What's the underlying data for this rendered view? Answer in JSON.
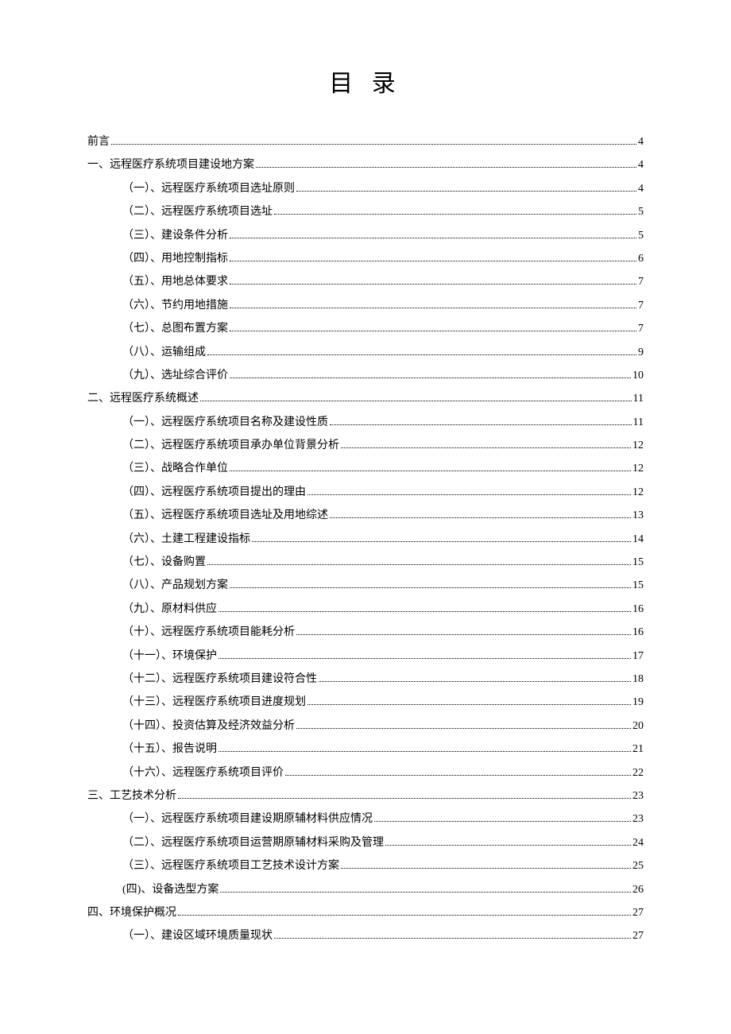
{
  "title": "目 录",
  "entries": [
    {
      "level": 0,
      "label": "前言",
      "page": "4"
    },
    {
      "level": 0,
      "label": "一、远程医疗系统项目建设地方案",
      "page": "4"
    },
    {
      "level": 1,
      "label": "（一）、远程医疗系统项目选址原则",
      "page": "4"
    },
    {
      "level": 1,
      "label": "（二）、远程医疗系统项目选址",
      "page": "5"
    },
    {
      "level": 1,
      "label": "（三）、建设条件分析",
      "page": "5"
    },
    {
      "level": 1,
      "label": "（四）、用地控制指标",
      "page": "6"
    },
    {
      "level": 1,
      "label": "（五）、用地总体要求",
      "page": "7"
    },
    {
      "level": 1,
      "label": "（六）、节约用地措施",
      "page": "7"
    },
    {
      "level": 1,
      "label": "（七）、总图布置方案",
      "page": "7"
    },
    {
      "level": 1,
      "label": "（八）、运输组成",
      "page": "9"
    },
    {
      "level": 1,
      "label": "（九）、选址综合评价",
      "page": "10"
    },
    {
      "level": 0,
      "label": "二、远程医疗系统概述",
      "page": "11"
    },
    {
      "level": 1,
      "label": "（一）、远程医疗系统项目名称及建设性质",
      "page": "11"
    },
    {
      "level": 1,
      "label": "（二）、远程医疗系统项目承办单位背景分析",
      "page": "12"
    },
    {
      "level": 1,
      "label": "（三）、战略合作单位",
      "page": "12"
    },
    {
      "level": 1,
      "label": "（四）、远程医疗系统项目提出的理由",
      "page": "12"
    },
    {
      "level": 1,
      "label": "（五）、远程医疗系统项目选址及用地综述",
      "page": "13"
    },
    {
      "level": 1,
      "label": "（六）、土建工程建设指标",
      "page": "14"
    },
    {
      "level": 1,
      "label": "（七）、设备购置",
      "page": "15"
    },
    {
      "level": 1,
      "label": "（八）、产品规划方案",
      "page": "15"
    },
    {
      "level": 1,
      "label": "（九）、原材料供应",
      "page": "16"
    },
    {
      "level": 1,
      "label": "（十）、远程医疗系统项目能耗分析",
      "page": "16"
    },
    {
      "level": 1,
      "label": "（十一）、环境保护",
      "page": "17"
    },
    {
      "level": 1,
      "label": "（十二）、远程医疗系统项目建设符合性",
      "page": "18"
    },
    {
      "level": 1,
      "label": "（十三）、远程医疗系统项目进度规划",
      "page": "19"
    },
    {
      "level": 1,
      "label": "（十四）、投资估算及经济效益分析",
      "page": "20"
    },
    {
      "level": 1,
      "label": "（十五）、报告说明",
      "page": "21"
    },
    {
      "level": 1,
      "label": "（十六）、远程医疗系统项目评价",
      "page": "22"
    },
    {
      "level": 0,
      "label": "三、工艺技术分析",
      "page": "23"
    },
    {
      "level": 1,
      "label": "（一）、远程医疗系统项目建设期原辅材料供应情况",
      "page": "23"
    },
    {
      "level": 1,
      "label": "（二）、远程医疗系统项目运营期原辅材料采购及管理",
      "page": "24"
    },
    {
      "level": 1,
      "label": "（三）、远程医疗系统项目工艺技术设计方案",
      "page": "25"
    },
    {
      "level": 1,
      "label": "(四)、设备选型方案",
      "page": "26"
    },
    {
      "level": 0,
      "label": "四、环境保护概况",
      "page": "27"
    },
    {
      "level": 1,
      "label": "（一）、建设区域环境质量现状",
      "page": "27"
    }
  ]
}
